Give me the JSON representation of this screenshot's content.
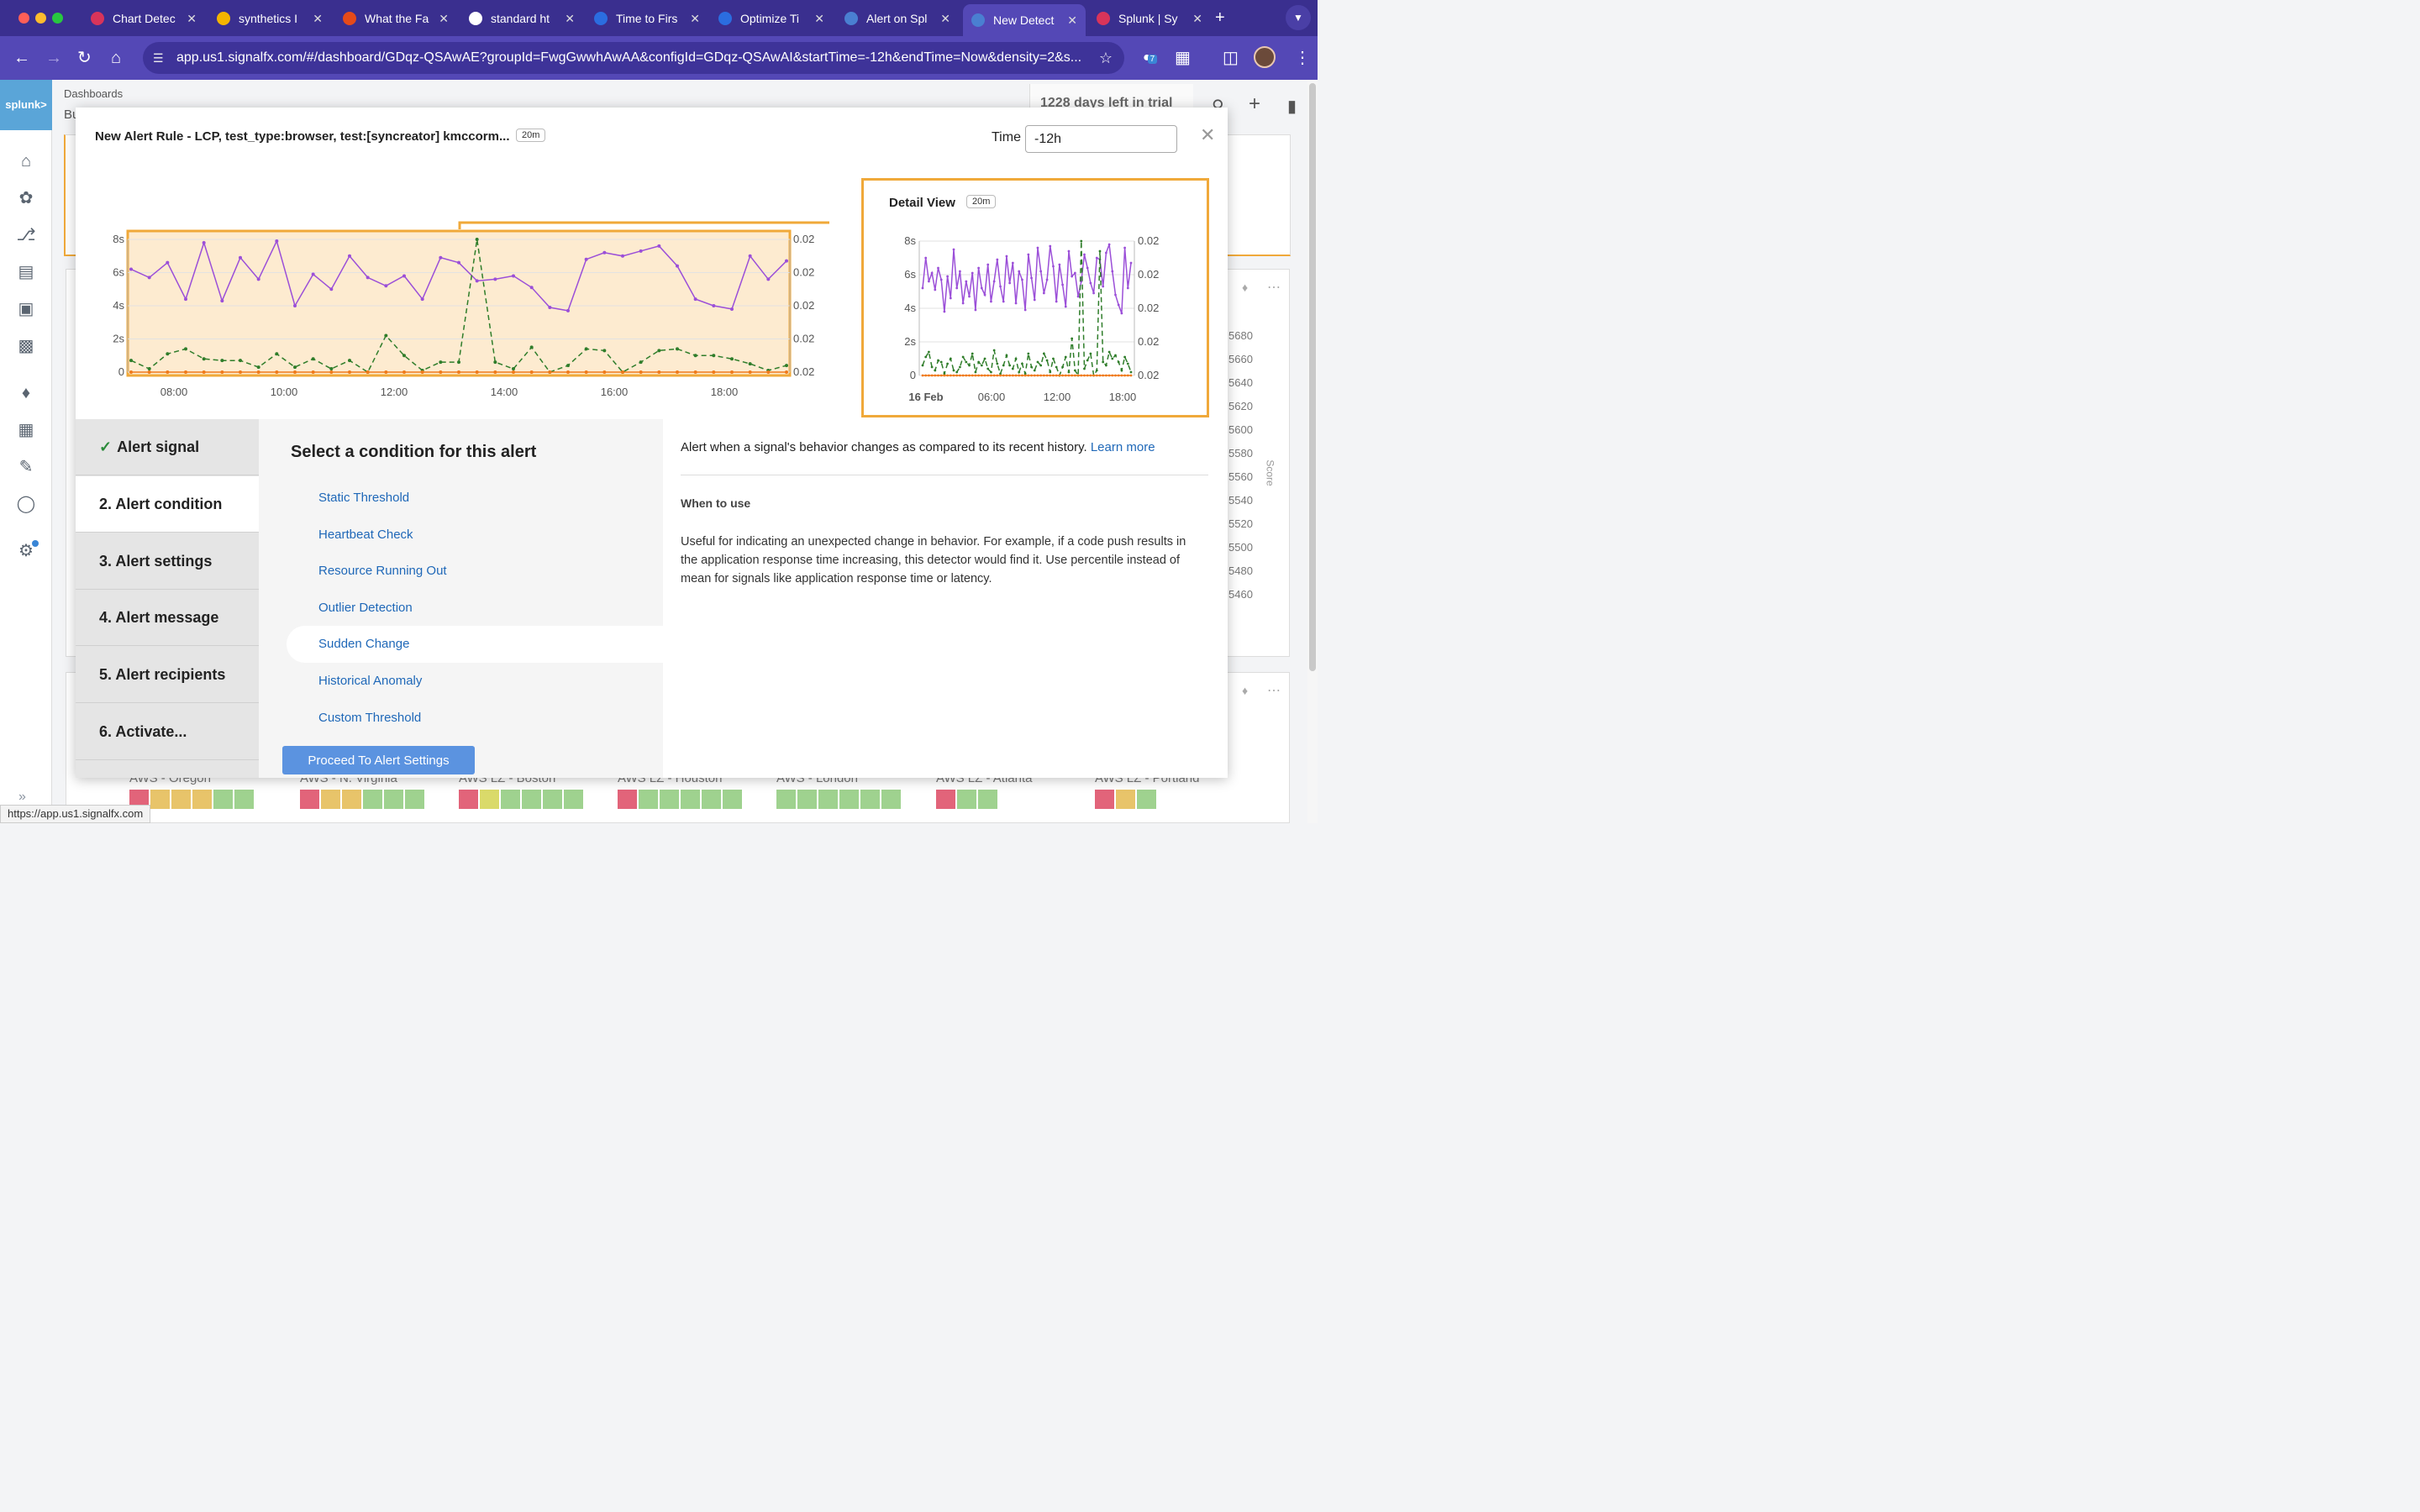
{
  "browser": {
    "tabs": [
      {
        "title": "Chart Detec",
        "fav": "#d9345a"
      },
      {
        "title": "synthetics I",
        "fav": "#f4b400"
      },
      {
        "title": "What the Fa",
        "fav": "#e64a19"
      },
      {
        "title": "standard ht",
        "fav": "#ffffff"
      },
      {
        "title": "Time to Firs",
        "fav": "#2b6de0"
      },
      {
        "title": "Optimize Ti",
        "fav": "#2b6de0"
      },
      {
        "title": "Alert on Spl",
        "fav": "#4a7fd1"
      },
      {
        "title": "New Detect",
        "fav": "#4a7fd1"
      },
      {
        "title": "Splunk | Sy",
        "fav": "#d9345a"
      }
    ],
    "url": "app.us1.signalfx.com/#/dashboard/GDqz-QSAwAE?groupId=FwgGwwhAwAA&configId=GDqz-QSAwAI&startTime=-12h&endTime=Now&density=2&s...",
    "status_url": "https://app.us1.signalfx.com",
    "extension_count": "7"
  },
  "app": {
    "logo": "splunk>",
    "breadcrumb": "Dashboards",
    "breadcrumb2": "Bu",
    "trial": "1228 days left in trial",
    "score_ticks": [
      "5680",
      "5660",
      "5640",
      "5620",
      "5600",
      "5580",
      "5560",
      "5540",
      "5520",
      "5500",
      "5480",
      "5460"
    ],
    "score_label": "Score",
    "regions": [
      "AWS - Oregon",
      "AWS - N. Virginia",
      "AWS LZ - Boston",
      "AWS LZ - Houston",
      "AWS - London",
      "AWS LZ - Atlanta",
      "AWS LZ - Portland"
    ],
    "colors": {
      "accent": "#5448b6",
      "highlight": "#f0a93a",
      "link": "#1f68b8",
      "button": "#5b93e0"
    }
  },
  "modal": {
    "title": "New Alert Rule - LCP, test_type:browser, test:[syncreator] kmccorm...",
    "resolution": "20m",
    "time_label": "Time",
    "time_value": "-12h",
    "detail_title": "Detail View",
    "detail_resolution": "20m",
    "steps": [
      {
        "label": "Alert signal",
        "done": true
      },
      {
        "label": "2.  Alert condition",
        "done": false
      },
      {
        "label": "3.  Alert settings",
        "done": false
      },
      {
        "label": "4.  Alert message",
        "done": false
      },
      {
        "label": "5.  Alert recipients",
        "done": false
      },
      {
        "label": "6.  Activate...",
        "done": false
      }
    ],
    "condition_heading": "Select a condition for this alert",
    "conditions": [
      "Static Threshold",
      "Heartbeat Check",
      "Resource Running Out",
      "Outlier Detection",
      "Sudden Change",
      "Historical Anomaly",
      "Custom Threshold"
    ],
    "selected_condition": "Sudden Change",
    "proceed_label": "Proceed To Alert Settings",
    "description": "Alert when a signal's behavior changes as compared to its recent history.",
    "learn_more": "Learn more",
    "when_heading": "When to use",
    "when_text": "Useful for indicating an unexpected change in behavior. For example, if a code push results in the application response time increasing, this detector would find it. Use percentile instead of mean for signals like application response time or latency."
  },
  "chart_data": [
    {
      "type": "line",
      "x": [
        "07:20",
        "07:40",
        "08:00",
        "08:20",
        "08:40",
        "09:00",
        "09:20",
        "09:40",
        "10:00",
        "10:20",
        "10:40",
        "11:00",
        "11:20",
        "11:40",
        "12:00",
        "12:20",
        "12:40",
        "13:00",
        "13:20",
        "13:40",
        "14:00",
        "14:20",
        "14:40",
        "15:00",
        "15:20",
        "15:40",
        "16:00",
        "16:20",
        "16:40",
        "17:00",
        "17:20",
        "17:40",
        "18:00",
        "18:20",
        "18:40",
        "19:00",
        "19:10"
      ],
      "series": [
        {
          "color": "#9b4fd8",
          "dash": "solid",
          "values": [
            6.2,
            5.7,
            6.6,
            4.4,
            7.8,
            4.3,
            6.9,
            5.6,
            7.9,
            4.0,
            5.9,
            5.0,
            7.0,
            5.7,
            5.2,
            5.8,
            4.4,
            6.9,
            6.6,
            5.5,
            5.6,
            5.8,
            5.1,
            3.9,
            3.7,
            6.8,
            7.2,
            7.0,
            7.3,
            7.6,
            6.4,
            4.4,
            4.0,
            3.8,
            7.0,
            5.6,
            6.7
          ]
        },
        {
          "color": "#2f7d2a",
          "dash": "dashed",
          "values": [
            0.7,
            0.2,
            1.1,
            1.4,
            0.8,
            0.7,
            0.7,
            0.3,
            1.1,
            0.3,
            0.8,
            0.2,
            0.7,
            0.0,
            2.2,
            1.0,
            0.1,
            0.6,
            0.6,
            8.0,
            0.6,
            0.2,
            1.5,
            0.0,
            0.4,
            1.4,
            1.3,
            0.0,
            0.6,
            1.3,
            1.4,
            1.0,
            1.0,
            0.8,
            0.5,
            0.1,
            0.4
          ]
        },
        {
          "color": "#f07a1a",
          "dash": "solid",
          "values": [
            0,
            0,
            0,
            0,
            0,
            0,
            0,
            0,
            0,
            0,
            0,
            0,
            0,
            0,
            0,
            0,
            0,
            0,
            0,
            0,
            0,
            0,
            0,
            0,
            0,
            0,
            0,
            0,
            0,
            0,
            0,
            0,
            0,
            0,
            0,
            0,
            0
          ]
        }
      ],
      "x_ticks": [
        "08:00",
        "10:00",
        "12:00",
        "14:00",
        "16:00",
        "18:00"
      ],
      "y_ticks": [
        "0",
        "2s",
        "4s",
        "6s",
        "8s"
      ],
      "y2_ticks": [
        "0.02",
        "0.02",
        "0.02",
        "0.02",
        "0.02"
      ],
      "ylim": [
        0,
        8
      ],
      "grid": true
    },
    {
      "type": "line",
      "x_ticks": [
        "16 Feb",
        "06:00",
        "12:00",
        "18:00"
      ],
      "y_ticks": [
        "0",
        "2s",
        "4s",
        "6s",
        "8s"
      ],
      "y2_ticks": [
        "0.02",
        "0.02",
        "0.02",
        "0.02",
        "0.02"
      ],
      "ylim": [
        0,
        8
      ],
      "grid": true,
      "series": [
        {
          "color": "#9b4fd8",
          "dash": "solid",
          "values": [
            5.2,
            7.0,
            5.6,
            6.1,
            5.1,
            6.4,
            5.7,
            3.8,
            5.9,
            4.6,
            7.5,
            5.2,
            6.2,
            4.3,
            5.6,
            4.7,
            6.1,
            3.9,
            6.4,
            5.2,
            4.8,
            6.6,
            4.4,
            5.6,
            6.9,
            5.3,
            4.4,
            7.1,
            5.5,
            6.7,
            4.3,
            6.2,
            5.7,
            3.9,
            7.2,
            5.8,
            4.5,
            7.6,
            6.2,
            4.9,
            5.7,
            7.7,
            6.5,
            4.4,
            6.6,
            5.4,
            4.1,
            7.4,
            5.9,
            6.1,
            4.7,
            5.6,
            7.2,
            6.4,
            5.5,
            4.9,
            7.0,
            6.9,
            5.3,
            7.3,
            7.8,
            6.2,
            4.8,
            4.2,
            3.7,
            7.6,
            5.2,
            6.7
          ]
        },
        {
          "color": "#2f7d2a",
          "dash": "dashed",
          "values": [
            0.6,
            1.1,
            1.4,
            0.5,
            0.3,
            0.9,
            0.8,
            0.1,
            0.7,
            1.0,
            0.3,
            0.2,
            0.5,
            1.1,
            0.8,
            0.6,
            1.3,
            0.2,
            0.8,
            0.6,
            1.0,
            0.4,
            0.2,
            1.5,
            0.7,
            0.1,
            0.6,
            1.2,
            0.6,
            0.4,
            1.0,
            0.2,
            0.7,
            0.1,
            1.3,
            0.5,
            0.3,
            0.8,
            0.6,
            1.3,
            0.9,
            0.2,
            1.0,
            0.5,
            0.0,
            0.5,
            1.1,
            0.2,
            2.2,
            0.3,
            0.0,
            8.0,
            0.4,
            0.9,
            1.3,
            0.0,
            0.3,
            7.4,
            0.8,
            0.6,
            1.4,
            1.0,
            1.2,
            0.8,
            0.3,
            1.1,
            0.7,
            0.2
          ]
        },
        {
          "color": "#f07a1a",
          "dash": "solid",
          "values": [
            0,
            0,
            0,
            0,
            0,
            0,
            0,
            0,
            0,
            0,
            0,
            0,
            0,
            0,
            0,
            0,
            0,
            0,
            0,
            0,
            0,
            0,
            0,
            0,
            0,
            0,
            0,
            0,
            0,
            0,
            0,
            0,
            0,
            0,
            0,
            0,
            0,
            0,
            0,
            0,
            0,
            0,
            0,
            0,
            0,
            0,
            0,
            0,
            0,
            0,
            0,
            0,
            0,
            0,
            0,
            0,
            0,
            0,
            0,
            0,
            0,
            0,
            0,
            0,
            0,
            0,
            0,
            0
          ]
        }
      ]
    }
  ]
}
